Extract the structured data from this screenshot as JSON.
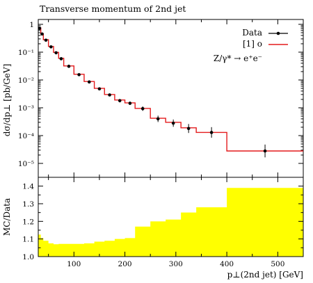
{
  "title": "Transverse momentum of 2nd jet",
  "colors": {
    "mc_line": "#e31a1c",
    "band": "#ffff00",
    "data_point": "#000000"
  },
  "chart_data": [
    {
      "type": "line",
      "title": "Transverse momentum of 2nd jet",
      "ylabel": "dσ/dp⊥ [pb/GeV]",
      "yscale": "log",
      "xlim": [
        30,
        550
      ],
      "ylim": [
        1e-05,
        1.4
      ],
      "yticks": [
        "10⁻⁵",
        "10⁻⁴",
        "10⁻³",
        "10⁻²",
        "10⁻¹",
        "1"
      ],
      "legend_position": "top-right",
      "legend": [
        "Data",
        "[1] o"
      ],
      "annotation": "Z/γ* → e⁺e⁻",
      "series": [
        {
          "name": "Data",
          "style": "points-with-errors",
          "x": [
            32.5,
            37.5,
            45,
            55,
            65,
            75,
            90,
            110,
            130,
            150,
            170,
            190,
            210,
            235,
            265,
            295,
            325,
            370,
            475
          ],
          "y": [
            0.72,
            0.45,
            0.27,
            0.155,
            0.095,
            0.058,
            0.031,
            0.0155,
            0.0085,
            0.0048,
            0.0029,
            0.0018,
            0.00145,
            0.00093,
            0.0004,
            0.00028,
            0.00018,
            0.00013,
            2.8e-05
          ],
          "yerr_factor": [
            1.05,
            1.05,
            1.05,
            1.05,
            1.06,
            1.06,
            1.07,
            1.08,
            1.1,
            1.12,
            1.12,
            1.15,
            1.15,
            1.2,
            1.3,
            1.35,
            1.45,
            1.55,
            1.7
          ]
        },
        {
          "name": "[1] o",
          "style": "histogram",
          "edges": [
            30,
            35,
            40,
            50,
            60,
            70,
            80,
            100,
            120,
            140,
            160,
            180,
            200,
            220,
            250,
            280,
            310,
            340,
            400,
            550
          ],
          "values": [
            0.75,
            0.46,
            0.28,
            0.16,
            0.098,
            0.06,
            0.032,
            0.016,
            0.0088,
            0.005,
            0.003,
            0.0019,
            0.0015,
            0.00095,
            0.00042,
            0.0003,
            0.00019,
            0.00013,
            2.8e-05
          ]
        }
      ]
    },
    {
      "type": "area",
      "ylabel": "MC/Data",
      "xlabel": "p⊥(2nd jet) [GeV]",
      "xlim": [
        30,
        550
      ],
      "ylim": [
        1.0,
        1.45
      ],
      "xticks": [
        100,
        200,
        300,
        400,
        500
      ],
      "yticks": [
        1.0,
        1.1,
        1.2,
        1.3,
        1.4
      ],
      "band": {
        "edges": [
          30,
          35,
          40,
          50,
          60,
          70,
          80,
          100,
          120,
          140,
          160,
          180,
          200,
          220,
          250,
          280,
          310,
          340,
          400,
          550
        ],
        "upper": [
          1.125,
          1.105,
          1.09,
          1.075,
          1.07,
          1.072,
          1.072,
          1.072,
          1.075,
          1.085,
          1.09,
          1.1,
          1.105,
          1.17,
          1.2,
          1.21,
          1.25,
          1.28,
          1.39
        ],
        "lower": [
          1.0,
          1.0,
          1.0,
          1.0,
          1.0,
          1.0,
          1.0,
          1.0,
          1.0,
          1.0,
          1.0,
          1.0,
          1.0,
          1.0,
          1.0,
          1.0,
          1.0,
          1.0,
          1.0
        ]
      }
    }
  ]
}
